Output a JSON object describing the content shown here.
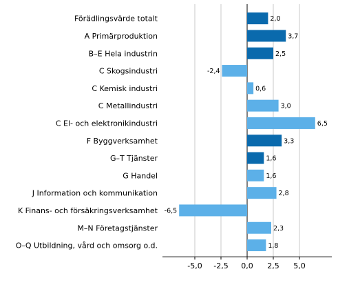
{
  "chart_data": {
    "type": "bar",
    "orientation": "horizontal",
    "title": "",
    "xlabel": "",
    "ylabel": "",
    "xlim": [
      -6.5,
      8.0
    ],
    "grid": true,
    "legend": "none",
    "categories": [
      "Förädlingsvärde totalt",
      "A Primärproduktion",
      "B–E Hela industrin",
      "C Skogsindustri",
      "C Kemisk industri",
      "C Metallindustri",
      "C El- och elektronikindustri",
      "F Byggverksamhet",
      "G–T Tjänster",
      "G Handel",
      "J Information och kommunikation",
      "K Finans- och försäkringsverksamhet",
      "M–N Företagstjänster",
      "O–Q Utbildning, vård och omsorg o.d."
    ],
    "values": [
      2.0,
      3.7,
      2.5,
      -2.4,
      0.6,
      3.0,
      6.5,
      3.3,
      1.6,
      1.6,
      2.8,
      -6.5,
      2.3,
      1.8
    ],
    "value_labels": [
      "2,0",
      "3,7",
      "2,5",
      "-2,4",
      "0,6",
      "3,0",
      "6,5",
      "3,3",
      "1,6",
      "1,6",
      "2,8",
      "-6,5",
      "2,3",
      "1,8"
    ],
    "bar_color_group": [
      "dark",
      "dark",
      "dark",
      "light",
      "light",
      "light",
      "light",
      "dark",
      "dark",
      "light",
      "light",
      "light",
      "light",
      "light"
    ],
    "colors": {
      "dark": "#0a6aad",
      "light": "#5cb0e8"
    },
    "xticks": [
      -5.0,
      -2.5,
      0.0,
      2.5,
      5.0
    ],
    "xtick_labels": [
      "-5,0",
      "-2,5",
      "0,0",
      "2,5",
      "5,0"
    ]
  }
}
